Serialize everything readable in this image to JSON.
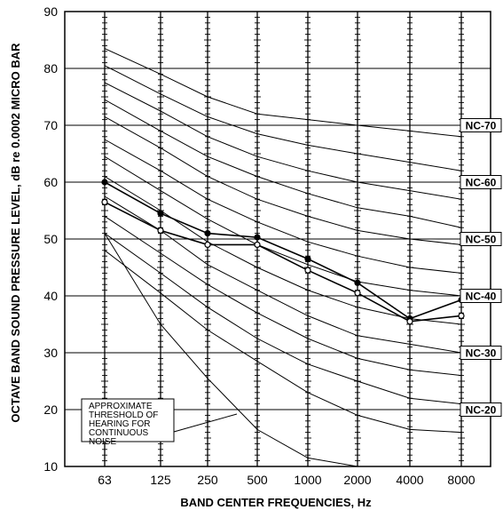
{
  "chart_data": {
    "type": "line",
    "xlabel": "BAND CENTER FREQUENCIES, Hz",
    "ylabel": "OCTAVE BAND SOUND PRESSURE LEVEL, dB re 0.0002 MICRO BAR",
    "x_categories": [
      "63",
      "125",
      "250",
      "500",
      "1000",
      "2000",
      "4000",
      "8000"
    ],
    "y_ticks": [
      "10",
      "20",
      "30",
      "40",
      "50",
      "60",
      "70",
      "80",
      "90"
    ],
    "ylim": [
      10,
      90
    ],
    "grid": true,
    "nc_curves": [
      {
        "level": 70,
        "values": [
          83.5,
          79,
          75,
          72,
          71,
          70,
          69,
          68
        ]
      },
      {
        "level": 65,
        "values": [
          80.5,
          75.5,
          71.5,
          68.5,
          66.5,
          65,
          63.5,
          62
        ]
      },
      {
        "level": 60,
        "values": [
          77.5,
          72.5,
          68,
          64.5,
          62,
          60,
          58.5,
          57
        ]
      },
      {
        "level": 55,
        "values": [
          74.5,
          69,
          64.5,
          61,
          58,
          55.5,
          54,
          52
        ]
      },
      {
        "level": 50,
        "values": [
          71.5,
          66,
          61,
          57,
          54,
          51.5,
          50,
          49
        ]
      },
      {
        "level": 45,
        "values": [
          67.5,
          62,
          57,
          53,
          49.5,
          47,
          45,
          44
        ]
      },
      {
        "level": 40,
        "values": [
          64.5,
          58.5,
          53.5,
          49,
          45.5,
          42.5,
          41,
          40
        ]
      },
      {
        "level": 35,
        "values": [
          61,
          55,
          49.5,
          45,
          41,
          38,
          36,
          35
        ]
      },
      {
        "level": 30,
        "values": [
          57.5,
          51.5,
          45.5,
          41,
          36.5,
          33,
          31.5,
          30
        ]
      },
      {
        "level": 25,
        "values": [
          54,
          47.5,
          42,
          37,
          32.5,
          29,
          27,
          26
        ]
      },
      {
        "level": 20,
        "values": [
          51,
          44,
          38,
          32.5,
          28,
          25,
          22,
          21
        ]
      },
      {
        "level": 15,
        "values": [
          48,
          40.5,
          34,
          28.5,
          23,
          19,
          16.5,
          16
        ]
      }
    ],
    "nc_labels": [
      {
        "text": "NC-70",
        "level": 70
      },
      {
        "text": "NC-60",
        "level": 60
      },
      {
        "text": "NC-50",
        "level": 50
      },
      {
        "text": "NC-40",
        "level": 40
      },
      {
        "text": "NC-30",
        "level": 30
      },
      {
        "text": "NC-20",
        "level": 20
      }
    ],
    "threshold": {
      "values": [
        51,
        35,
        25.5,
        16.5,
        11.5,
        10,
        null,
        null
      ],
      "annotation": [
        "APPROXIMATE",
        "THRESHOLD OF",
        "HEARING FOR",
        "CONTINUOUS",
        "NOISE"
      ]
    },
    "series": [
      {
        "values": [
          60,
          54.5,
          51,
          50.3,
          46.5,
          42.3,
          36,
          39.3
        ],
        "marker": "filled",
        "color": "#000000"
      },
      {
        "values": [
          56.5,
          51.5,
          49,
          49,
          44.5,
          40.5,
          35.5,
          36.5
        ],
        "marker": "open",
        "color": "#000000"
      }
    ]
  }
}
